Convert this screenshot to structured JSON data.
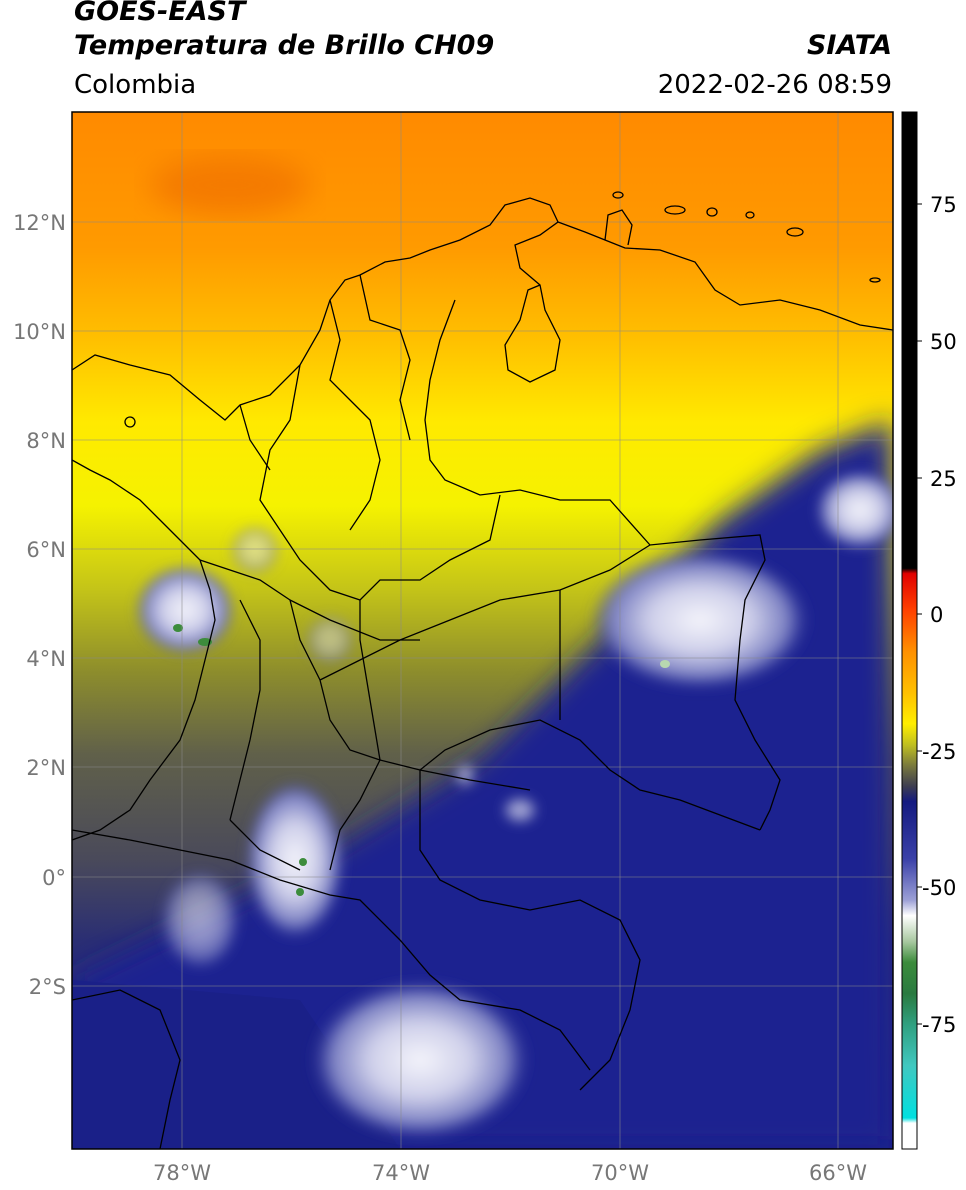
{
  "header": {
    "satellite": "GOES-EAST",
    "product": "Temperatura de Brillo CH09",
    "agency": "SIATA",
    "region": "Colombia",
    "datetime": "2022-02-26 08:59"
  },
  "map": {
    "lat_labels": [
      "12°N",
      "10°N",
      "8°N",
      "6°N",
      "4°N",
      "2°N",
      "0°",
      "2°S"
    ],
    "lon_labels": [
      "78°W",
      "74°W",
      "70°W",
      "66°W"
    ],
    "background_description_colors": {
      "warm_orange": "#ff8c00",
      "yellow": "#fff200",
      "olive": "#8a8a2a",
      "gray": "#55555a",
      "navy": "#1a1f8a",
      "cloud_white": "#e8e8f4"
    }
  },
  "colorbar": {
    "tick_labels": [
      "75",
      "50",
      "25",
      "0",
      "-25",
      "-50",
      "-75"
    ],
    "tick_values": [
      75,
      50,
      25,
      0,
      -25,
      -50,
      -75
    ],
    "range": [
      -95,
      90
    ]
  }
}
